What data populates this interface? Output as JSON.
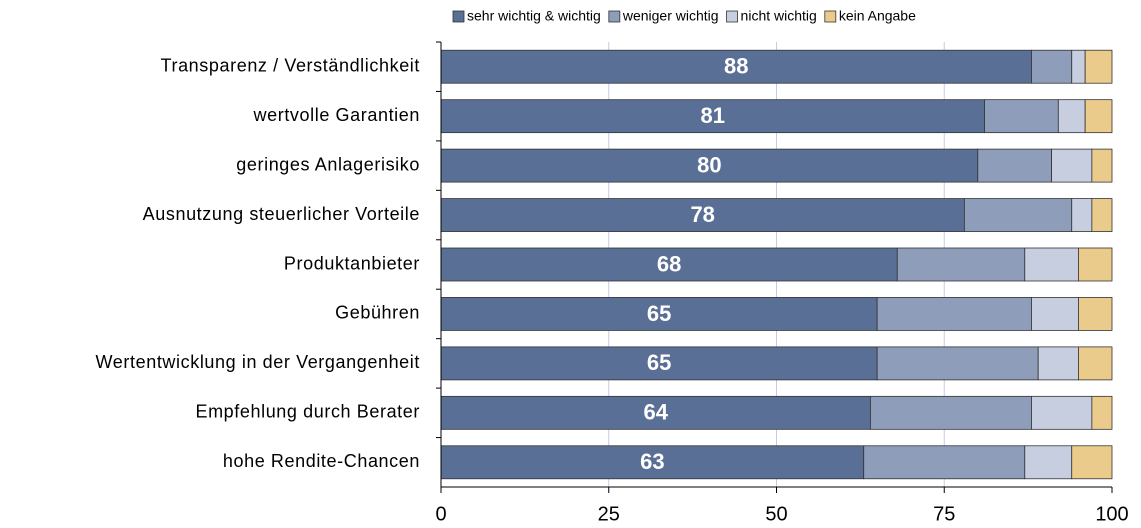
{
  "chart_data": {
    "type": "stacked-barh",
    "categories": [
      "Transparenz / Verständlichkeit",
      "wertvolle Garantien",
      "geringes Anlagerisiko",
      "Ausnutzung steuerlicher Vorteile",
      "Produktanbieter",
      "Gebühren",
      "Wertentwicklung in der Vergangenheit",
      "Empfehlung durch Berater",
      "hohe Rendite-Chancen"
    ],
    "series": [
      {
        "name": "sehr wichtig & wichtig",
        "color": "#5a6f96",
        "values": [
          88,
          81,
          80,
          78,
          68,
          65,
          65,
          64,
          63
        ],
        "data_labels": true
      },
      {
        "name": "weniger wichtig",
        "color": "#8e9dba",
        "values": [
          6,
          11,
          11,
          16,
          19,
          23,
          24,
          24,
          24
        ],
        "data_labels": false
      },
      {
        "name": "nicht wichtig",
        "color": "#c6cedf",
        "values": [
          2,
          4,
          6,
          3,
          8,
          7,
          6,
          9,
          7
        ],
        "data_labels": false
      },
      {
        "name": "kein Angabe",
        "color": "#ebcb8b",
        "values": [
          4,
          4,
          3,
          3,
          5,
          5,
          5,
          3,
          6
        ],
        "data_labels": false
      }
    ],
    "xlim": [
      0,
      100
    ],
    "xticks": [
      0,
      25,
      50,
      75,
      100
    ],
    "grid": true,
    "legend": "top"
  }
}
